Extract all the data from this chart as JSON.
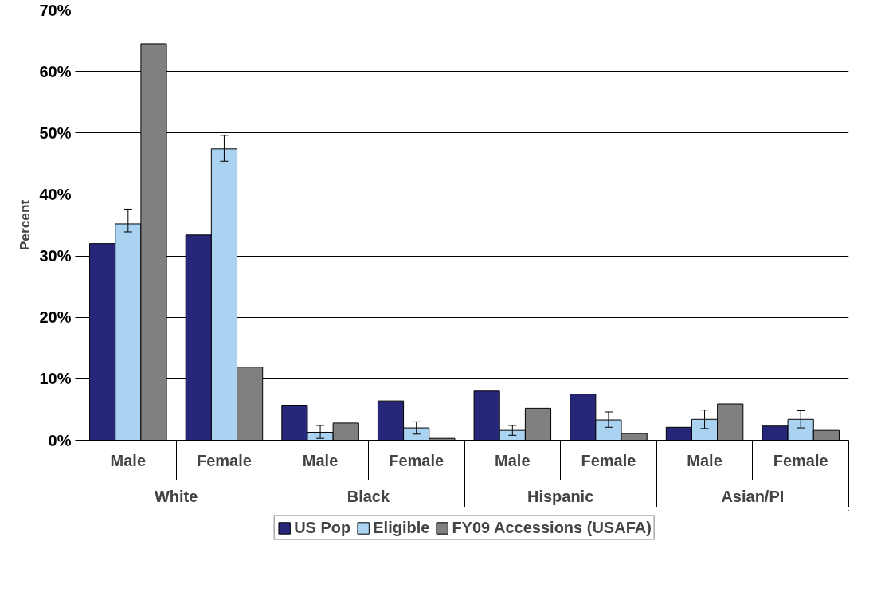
{
  "chart_data": {
    "type": "bar",
    "ylabel": "Percent",
    "categories": [
      "Male",
      "Female",
      "Male",
      "Female",
      "Male",
      "Female",
      "Male",
      "Female"
    ],
    "annotations": [
      "White",
      "Black",
      "Hispanic",
      "Asian/PI"
    ],
    "series": [
      {
        "name": "US Pop",
        "color": "#27277a",
        "values": [
          32.0,
          33.4,
          5.7,
          6.4,
          8.0,
          7.5,
          2.1,
          2.3
        ]
      },
      {
        "name": "Eligible",
        "color": "#a9d3f0",
        "values": [
          35.2,
          47.4,
          1.3,
          2.0,
          1.6,
          3.3,
          3.4,
          3.4
        ],
        "errors": [
          [
            33.9,
            37.6
          ],
          [
            45.4,
            49.6
          ],
          [
            0.3,
            2.4
          ],
          [
            1.0,
            3.0
          ],
          [
            0.8,
            2.4
          ],
          [
            2.1,
            4.6
          ],
          [
            1.9,
            4.9
          ],
          [
            2.0,
            4.8
          ]
        ]
      },
      {
        "name": "FY09 Accessions (USAFA)",
        "color": "#808080",
        "values": [
          64.5,
          11.9,
          2.8,
          0.3,
          5.2,
          1.1,
          5.9,
          1.6
        ]
      }
    ],
    "ylim": [
      0,
      70
    ],
    "yticks": [
      {
        "value": 0,
        "label": "0%"
      },
      {
        "value": 10,
        "label": "10%"
      },
      {
        "value": 20,
        "label": "20%"
      },
      {
        "value": 30,
        "label": "30%"
      },
      {
        "value": 40,
        "label": "40%"
      },
      {
        "value": 50,
        "label": "50%"
      },
      {
        "value": 60,
        "label": "60%"
      },
      {
        "value": 70,
        "label": "70%"
      }
    ],
    "grid": "y",
    "legend": "bottom"
  }
}
